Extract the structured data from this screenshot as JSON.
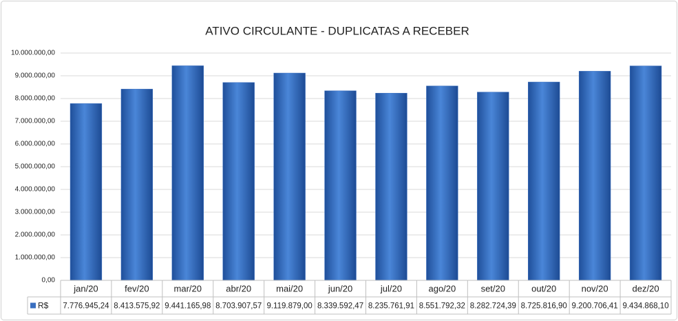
{
  "chart_data": {
    "type": "bar",
    "title": "ATIVO CIRCULANTE - DUPLICATAS A RECEBER",
    "categories": [
      "jan/20",
      "fev/20",
      "mar/20",
      "abr/20",
      "mai/20",
      "jun/20",
      "jul/20",
      "ago/20",
      "set/20",
      "out/20",
      "nov/20",
      "dez/20"
    ],
    "series": [
      {
        "name": "R$",
        "color": "#3a6fc0",
        "values": [
          7776945.24,
          8413575.92,
          9441165.98,
          8703907.57,
          9119879.0,
          8339592.47,
          8235761.91,
          8551792.32,
          8282724.39,
          8725816.9,
          9200706.41,
          9434868.1
        ],
        "value_labels": [
          "7.776.945,24",
          "8.413.575,92",
          "9.441.165,98",
          "8.703.907,57",
          "9.119.879,00",
          "8.339.592,47",
          "8.235.761,91",
          "8.551.792,32",
          "8.282.724,39",
          "8.725.816,90",
          "9.200.706,41",
          "9.434.868,10"
        ]
      }
    ],
    "ylim": [
      0,
      10000000
    ],
    "yticks": [
      {
        "value": 0,
        "label": "0,00"
      },
      {
        "value": 1000000,
        "label": "1.000.000,00"
      },
      {
        "value": 2000000,
        "label": "2.000.000,00"
      },
      {
        "value": 3000000,
        "label": "3.000.000,00"
      },
      {
        "value": 4000000,
        "label": "4.000.000,00"
      },
      {
        "value": 5000000,
        "label": "5.000.000,00"
      },
      {
        "value": 6000000,
        "label": "6.000.000,00"
      },
      {
        "value": 7000000,
        "label": "7.000.000,00"
      },
      {
        "value": 8000000,
        "label": "8.000.000,00"
      },
      {
        "value": 9000000,
        "label": "9.000.000,00"
      },
      {
        "value": 10000000,
        "label": "10.000.000,00"
      }
    ],
    "grid": true
  }
}
